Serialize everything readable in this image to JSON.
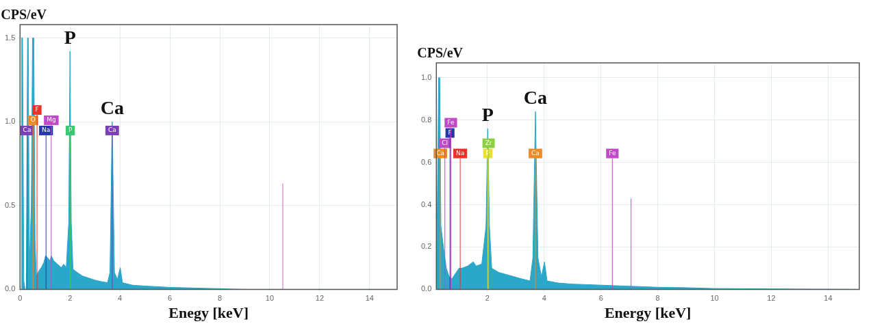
{
  "chart_data": [
    {
      "type": "area",
      "ylabel": "CPS/eV",
      "xlabel": "Enegy [keV]",
      "color": "#2ba7c9",
      "grid": true,
      "x": [
        0.05,
        0.1,
        0.15,
        0.2,
        0.25,
        0.3,
        0.33,
        0.37,
        0.45,
        0.5,
        0.55,
        0.6,
        0.65,
        0.75,
        0.85,
        0.95,
        1.02,
        1.1,
        1.2,
        1.25,
        1.35,
        1.5,
        1.65,
        1.75,
        1.85,
        1.95,
        2.0,
        2.05,
        2.12,
        2.3,
        2.5,
        2.7,
        3.0,
        3.3,
        3.5,
        3.6,
        3.69,
        3.78,
        3.9,
        4.01,
        4.1,
        4.5,
        5,
        6,
        7,
        8,
        9,
        15
      ],
      "values": [
        1.5,
        1.5,
        0.05,
        0,
        0,
        1.5,
        1.5,
        0.12,
        0.5,
        1.5,
        1.5,
        0.3,
        0.08,
        0.11,
        0.13,
        0.16,
        0.2,
        0.19,
        0.17,
        0.2,
        0.17,
        0.15,
        0.13,
        0.15,
        0.13,
        0.4,
        1.42,
        0.4,
        0.12,
        0.1,
        0.08,
        0.07,
        0.055,
        0.045,
        0.04,
        0.1,
        1.0,
        0.1,
        0.06,
        0.13,
        0.04,
        0.025,
        0.02,
        0.012,
        0.008,
        0.004,
        0,
        0
      ],
      "xlim": [
        0,
        15.1
      ],
      "ylim": [
        0,
        1.58
      ],
      "xticks": [
        0,
        2,
        4,
        6,
        8,
        10,
        12,
        14
      ],
      "yticks": [
        {
          "value": 0,
          "label": "0.0"
        },
        {
          "value": 0.5,
          "label": "0.5"
        },
        {
          "value": 1,
          "label": "1.0"
        },
        {
          "value": 1.5,
          "label": "1.5"
        }
      ],
      "annotations": [
        {
          "text": "P",
          "x": 2.0,
          "y": 1.42
        },
        {
          "text": "Ca",
          "x": 3.69,
          "y": 1.0
        }
      ],
      "ref_lines": [
        {
          "axis": "x",
          "value": 0.28,
          "label": "Ca",
          "color": "#7b3fb8"
        },
        {
          "axis": "x",
          "value": 0.52,
          "label": "O",
          "color": "#f08a24"
        },
        {
          "axis": "x",
          "value": 0.68,
          "label": "F",
          "color": "#e8322a"
        },
        {
          "axis": "x",
          "value": 1.04,
          "label": "Na",
          "color": "#2638a8"
        },
        {
          "axis": "x",
          "value": 1.25,
          "label": "Mg",
          "color": "#c04ac8"
        },
        {
          "axis": "x",
          "value": 2.01,
          "label": "P",
          "color": "#3cc870"
        },
        {
          "axis": "x",
          "value": 3.69,
          "label": "Ca",
          "color": "#7b3fb8"
        },
        {
          "axis": "x",
          "value": 10.52,
          "label": null,
          "color": "#d060c8"
        }
      ]
    },
    {
      "type": "area",
      "ylabel": "CPS/eV",
      "xlabel": "Energy [keV]",
      "color": "#2ba7c9",
      "grid": true,
      "x": [
        0.2,
        0.25,
        0.28,
        0.32,
        0.36,
        0.45,
        0.55,
        0.65,
        0.75,
        0.9,
        1.0,
        1.1,
        1.3,
        1.5,
        1.6,
        1.8,
        1.95,
        2.01,
        2.07,
        2.15,
        2.4,
        2.8,
        3.2,
        3.5,
        3.6,
        3.69,
        3.78,
        3.9,
        4.01,
        4.1,
        4.5,
        5,
        6,
        7,
        8,
        9,
        10,
        12,
        15
      ],
      "values": [
        0,
        0.6,
        1.0,
        1.0,
        0.3,
        0.2,
        0.1,
        0.06,
        0.05,
        0.08,
        0.1,
        0.1,
        0.11,
        0.13,
        0.11,
        0.12,
        0.3,
        0.76,
        0.3,
        0.1,
        0.08,
        0.065,
        0.05,
        0.04,
        0.15,
        0.84,
        0.15,
        0.06,
        0.13,
        0.04,
        0.03,
        0.025,
        0.02,
        0.015,
        0.01,
        0.008,
        0.004,
        0.002,
        0
      ],
      "xlim": [
        0.2,
        15.1
      ],
      "ylim": [
        0,
        1.07
      ],
      "xticks": [
        2,
        4,
        6,
        8,
        10,
        12,
        14
      ],
      "yticks": [
        {
          "value": 0,
          "label": "0.0"
        },
        {
          "value": 0.2,
          "label": "0.2"
        },
        {
          "value": 0.4,
          "label": "0.4"
        },
        {
          "value": 0.6,
          "label": "0.6"
        },
        {
          "value": 0.8,
          "label": "0.8"
        },
        {
          "value": 1,
          "label": "1.0"
        }
      ],
      "annotations": [
        {
          "text": "P",
          "x": 2.01,
          "y": 0.76
        },
        {
          "text": "Ca",
          "x": 3.69,
          "y": 0.84
        }
      ],
      "ref_lines": [
        {
          "axis": "x",
          "value": 0.34,
          "label": "Ca",
          "color": "#f08a24"
        },
        {
          "axis": "x",
          "value": 0.5,
          "label": "Cl",
          "color": "#c04ac8"
        },
        {
          "axis": "x",
          "value": 0.68,
          "label": "F",
          "color": "#2638a8"
        },
        {
          "axis": "x",
          "value": 0.71,
          "label": "Fe",
          "color": "#c04ac8"
        },
        {
          "axis": "x",
          "value": 1.04,
          "label": "Na",
          "color": "#e8322a"
        },
        {
          "axis": "x",
          "value": 2.01,
          "label": "P",
          "color": "#e8e030"
        },
        {
          "axis": "x",
          "value": 2.04,
          "label": "Zr",
          "color": "#8ad040"
        },
        {
          "axis": "x",
          "value": 3.69,
          "label": "Ca",
          "color": "#f08a24"
        },
        {
          "axis": "x",
          "value": 6.4,
          "label": "Fe",
          "color": "#c04ac8"
        },
        {
          "axis": "x",
          "value": 7.06,
          "label": null,
          "color": "#e040c0"
        }
      ]
    }
  ]
}
